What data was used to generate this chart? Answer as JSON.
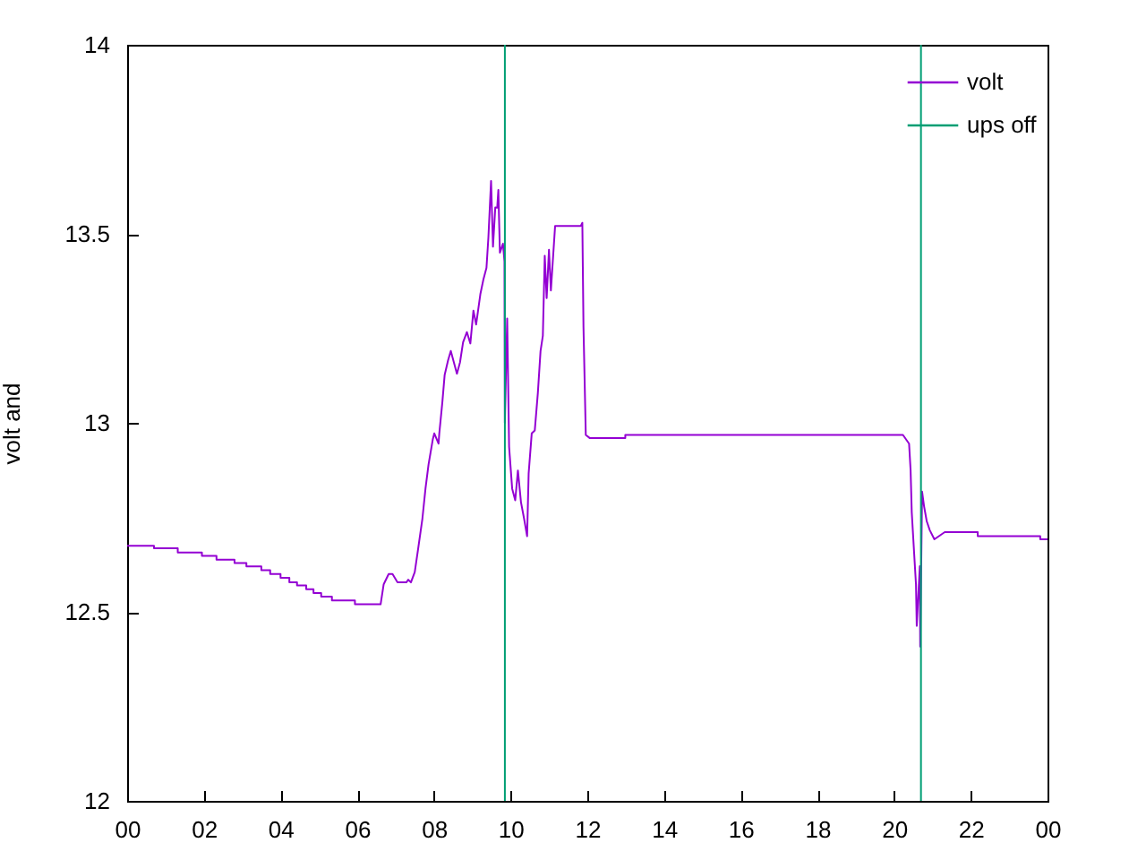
{
  "chart_data": {
    "type": "line",
    "ylabel": "volt and",
    "xlim": [
      0,
      24
    ],
    "ylim": [
      12,
      14
    ],
    "xticks": [
      {
        "value": 0,
        "label": "00"
      },
      {
        "value": 2,
        "label": "02"
      },
      {
        "value": 4,
        "label": "04"
      },
      {
        "value": 6,
        "label": "06"
      },
      {
        "value": 8,
        "label": "08"
      },
      10,
      12,
      14,
      16,
      18,
      20,
      22,
      {
        "value": 24,
        "label": "00"
      }
    ],
    "yticks": [
      12,
      12.5,
      13,
      13.5,
      14
    ],
    "grid": false,
    "legend": "top right",
    "series": [
      {
        "name": "volt",
        "type": "line",
        "color": "#9400d3",
        "x": [
          0,
          0.7,
          0.7,
          1.32,
          1.32,
          1.95,
          1.95,
          2.33,
          2.33,
          2.8,
          2.8,
          3.11,
          3.11,
          3.5,
          3.5,
          3.73,
          3.73,
          4.0,
          4.0,
          4.23,
          4.23,
          4.43,
          4.43,
          4.67,
          4.67,
          4.86,
          4.86,
          5.06,
          5.06,
          5.34,
          5.34,
          5.94,
          5.94,
          6.61,
          6.69,
          6.82,
          6.92,
          7.05,
          7.28,
          7.33,
          7.4,
          7.5,
          7.59,
          7.7,
          7.78,
          7.86,
          7.97,
          8.01,
          8.12,
          8.14,
          8.22,
          8.28,
          8.37,
          8.44,
          8.52,
          8.6,
          8.68,
          8.76,
          8.86,
          8.95,
          9.03,
          9.1,
          9.21,
          9.29,
          9.37,
          9.42,
          9.49,
          9.54,
          9.6,
          9.65,
          9.68,
          9.72,
          9.8,
          9.84,
          9.85,
          9.91,
          9.96,
          10.04,
          10.12,
          10.19,
          10.27,
          10.35,
          10.43,
          10.47,
          10.55,
          10.63,
          10.71,
          10.78,
          10.84,
          10.89,
          10.94,
          11.0,
          11.05,
          11.16,
          11.83,
          11.87,
          11.9,
          11.96,
          12.06,
          12.99,
          12.99,
          20.23,
          20.39,
          20.43,
          20.46,
          20.51,
          20.57,
          20.59,
          20.67,
          20.68,
          20.73,
          20.78,
          20.85,
          20.93,
          21.05,
          21.32,
          22.18,
          22.18,
          23.81,
          23.81,
          24.0
        ],
        "values": [
          12.675,
          12.675,
          12.668,
          12.668,
          12.657,
          12.657,
          12.648,
          12.648,
          12.638,
          12.638,
          12.629,
          12.629,
          12.62,
          12.62,
          12.61,
          12.61,
          12.6,
          12.6,
          12.59,
          12.59,
          12.578,
          12.578,
          12.57,
          12.57,
          12.56,
          12.56,
          12.55,
          12.55,
          12.54,
          12.54,
          12.53,
          12.53,
          12.52,
          12.52,
          12.573,
          12.6,
          12.6,
          12.578,
          12.578,
          12.585,
          12.578,
          12.605,
          12.668,
          12.747,
          12.826,
          12.89,
          12.956,
          12.972,
          12.945,
          12.972,
          13.055,
          13.127,
          13.166,
          13.19,
          13.16,
          13.13,
          13.16,
          13.213,
          13.24,
          13.21,
          13.297,
          13.26,
          13.34,
          13.379,
          13.41,
          13.49,
          13.64,
          13.466,
          13.57,
          13.569,
          13.616,
          13.45,
          13.474,
          13.427,
          13.0,
          13.276,
          12.937,
          12.826,
          12.795,
          12.874,
          12.79,
          12.747,
          12.7,
          12.866,
          12.972,
          12.98,
          13.079,
          13.19,
          13.23,
          13.442,
          13.33,
          13.458,
          13.35,
          13.521,
          13.521,
          13.529,
          13.253,
          12.968,
          12.96,
          12.96,
          12.968,
          12.968,
          12.945,
          12.874,
          12.763,
          12.676,
          12.573,
          12.463,
          12.621,
          12.408,
          12.818,
          12.78,
          12.74,
          12.716,
          12.692,
          12.711,
          12.711,
          12.7,
          12.7,
          12.692,
          12.692
        ]
      },
      {
        "name": "ups off",
        "type": "line",
        "color": "#009e73",
        "x": [
          9.85,
          9.85,
          null,
          20.7,
          20.7
        ],
        "values": [
          12,
          14,
          null,
          12,
          14
        ]
      }
    ]
  }
}
